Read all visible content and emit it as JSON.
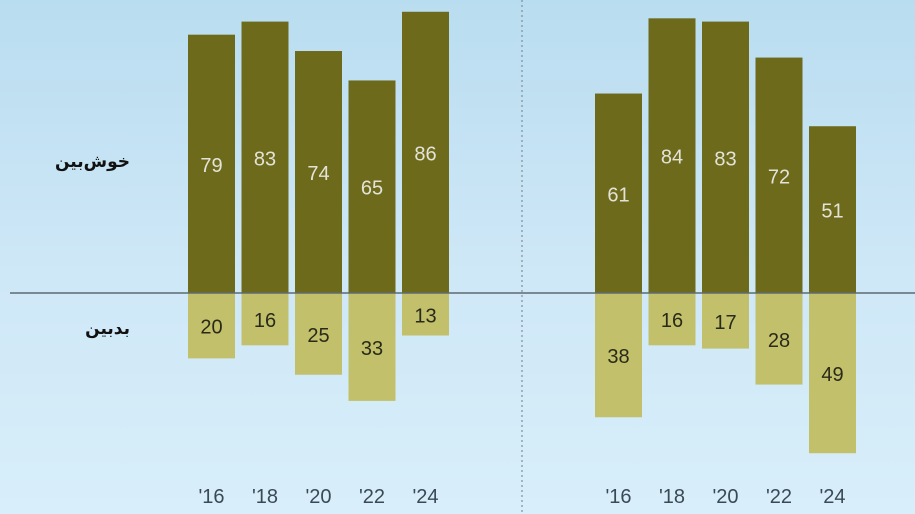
{
  "labels": {
    "optimistic": "خوش‌بین",
    "pessimistic": "بدبین"
  },
  "colors": {
    "optimistic": "#6e6a1c",
    "pessimistic": "#c2c06a",
    "optimistic_text": "#e3e3d8",
    "pessimistic_text": "#2a2a1a",
    "axis": "#5e6a70",
    "divider": "#7f8f98",
    "tick": "#3a4a55"
  },
  "chart_data": [
    {
      "type": "bar",
      "categories": [
        "'16",
        "'18",
        "'20",
        "'22",
        "'24"
      ],
      "series": [
        {
          "name": "خوش‌بین",
          "values": [
            79,
            83,
            74,
            65,
            86
          ]
        },
        {
          "name": "بدبین",
          "values": [
            20,
            16,
            25,
            33,
            13
          ]
        }
      ]
    },
    {
      "type": "bar",
      "categories": [
        "'16",
        "'18",
        "'20",
        "'22",
        "'24"
      ],
      "series": [
        {
          "name": "خوش‌بین",
          "values": [
            61,
            84,
            83,
            72,
            51
          ]
        },
        {
          "name": "بدبین",
          "values": [
            38,
            16,
            17,
            28,
            49
          ]
        }
      ]
    }
  ]
}
